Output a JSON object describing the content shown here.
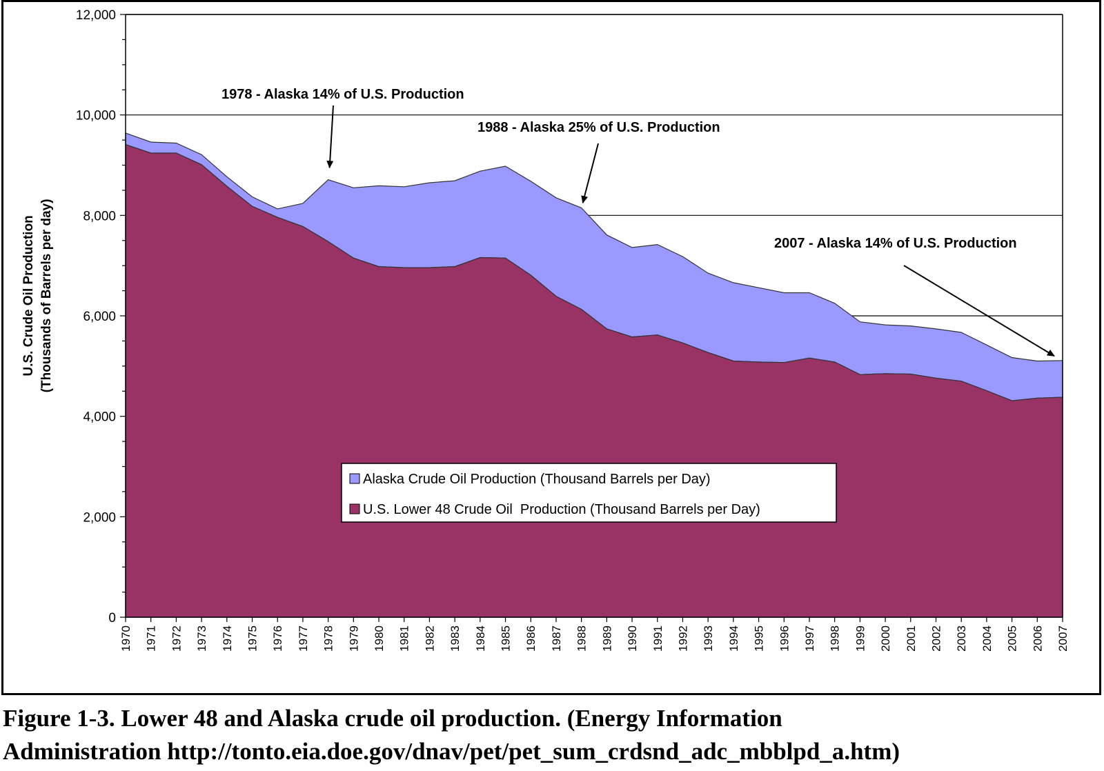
{
  "chart_data": {
    "type": "area",
    "stacked": true,
    "ylim": [
      0,
      12000
    ],
    "yticks": [
      0,
      2000,
      4000,
      6000,
      8000,
      10000,
      12000
    ],
    "ytick_labels": [
      "0",
      "2,000",
      "4,000",
      "6,000",
      "8,000",
      "10,000",
      "12,000"
    ],
    "ylabel": [
      "U.S. Crude Oil Production",
      "(Thousands of Barrels per day)"
    ],
    "grid": "horizontal",
    "x": [
      1970,
      1971,
      1972,
      1973,
      1974,
      1975,
      1976,
      1977,
      1978,
      1979,
      1980,
      1981,
      1982,
      1983,
      1984,
      1985,
      1986,
      1987,
      1988,
      1989,
      1990,
      1991,
      1992,
      1993,
      1994,
      1995,
      1996,
      1997,
      1998,
      1999,
      2000,
      2001,
      2002,
      2003,
      2004,
      2005,
      2006,
      2007
    ],
    "series": [
      {
        "name": "U.S. Lower 48 Crude Oil  Production (Thousand Barrels per Day)",
        "color": "#993366",
        "values": [
          9410,
          9240,
          9240,
          9010,
          8580,
          8180,
          7960,
          7780,
          7480,
          7150,
          6980,
          6960,
          6960,
          6980,
          7160,
          7150,
          6810,
          6390,
          6130,
          5740,
          5580,
          5620,
          5460,
          5270,
          5100,
          5080,
          5070,
          5160,
          5080,
          4830,
          4850,
          4840,
          4760,
          4700,
          4510,
          4310,
          4360,
          4380
        ]
      },
      {
        "name": "Alaska Crude Oil Production (Thousand Barrels per Day)",
        "color": "#9999ff",
        "values": [
          230,
          220,
          200,
          200,
          190,
          190,
          170,
          460,
          1230,
          1400,
          1610,
          1610,
          1690,
          1710,
          1720,
          1830,
          1870,
          1960,
          2020,
          1870,
          1780,
          1800,
          1720,
          1580,
          1560,
          1480,
          1390,
          1300,
          1170,
          1050,
          970,
          960,
          980,
          970,
          910,
          860,
          740,
          730
        ]
      }
    ],
    "annotations": [
      {
        "text": "1978 - Alaska 14% of U.S. Production",
        "x": 1978
      },
      {
        "text": "1988 - Alaska 25% of U.S. Production",
        "x": 1988
      },
      {
        "text": "2007 - Alaska 14% of U.S. Production",
        "x": 2007
      }
    ],
    "legend_position": "bottom-center"
  },
  "caption": {
    "line1": "Figure 1-3.  Lower 48 and Alaska crude oil production.  (Energy Information",
    "line2": "Administration http://tonto.eia.doe.gov/dnav/pet/pet_sum_crdsnd_adc_mbblpd_a.htm)"
  }
}
